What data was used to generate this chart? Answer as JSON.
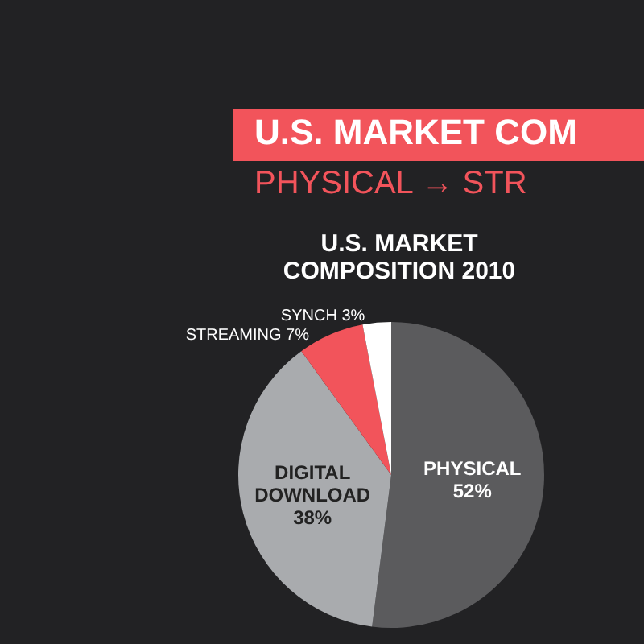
{
  "chart_data": {
    "type": "pie",
    "title": "U.S. MARKET\nCOMPOSITION 2010",
    "annotations": [
      "U.S. MARKET COM",
      "PHYSICAL → STR"
    ],
    "categories": [
      "PHYSICAL",
      "DIGITAL\nDOWNLOAD",
      "STREAMING",
      "SYNCH"
    ],
    "values": [
      52,
      38,
      7,
      3
    ],
    "value_labels": [
      "52%",
      "38%",
      "7%",
      "3%"
    ],
    "colors": [
      "#5b5b5d",
      "#a9abae",
      "#f2545b",
      "#ffffff"
    ],
    "legend": false
  }
}
